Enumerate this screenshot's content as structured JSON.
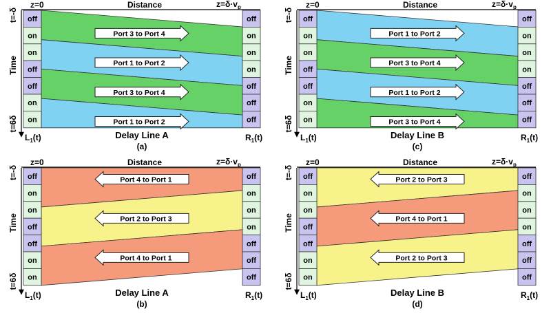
{
  "colors": {
    "green": "#66d166",
    "blue": "#7fd2f2",
    "orange": "#f59a7a",
    "yellow": "#f7f38a",
    "cell_green": "#dff5df",
    "cell_purple": "#c9c3f0",
    "border": "#333333"
  },
  "panels": [
    {
      "id": "a",
      "z0_label": "z=0",
      "distance_label": "Distance",
      "zend_label": "z=δ·v",
      "zend_sub": "p",
      "time_label": "Time",
      "t_start_label": "t=-δ",
      "t_end_label": "t=6δ",
      "left_label": "L",
      "left_sub": "1",
      "left_suffix": "(t)",
      "right_label": "R",
      "right_sub": "1",
      "right_suffix": "(t)",
      "delay_line_label": "Delay Line A",
      "caption": "(a)",
      "direction": "right",
      "left_cells": [
        "off",
        "on",
        "on",
        "off",
        "off",
        "on",
        "on"
      ],
      "right_cells": [
        "off",
        "on",
        "on",
        "on",
        "off",
        "off",
        "off"
      ],
      "bands": [
        {
          "color": "green",
          "label": "Port 3 to Port 4"
        },
        {
          "color": "blue",
          "label": "Port 1 to Port 2"
        },
        {
          "color": "green",
          "label": "Port 3 to Port 4"
        },
        {
          "color": "blue",
          "label": "Port 1 to Port 2"
        }
      ]
    },
    {
      "id": "c",
      "z0_label": "z=0",
      "distance_label": "Distance",
      "zend_label": "z=δ·v",
      "zend_sub": "p",
      "time_label": "Time",
      "t_start_label": "t=-δ",
      "t_end_label": "t=6δ",
      "left_label": "L",
      "left_sub": "1",
      "left_suffix": "(t)",
      "right_label": "R",
      "right_sub": "1",
      "right_suffix": "(t)",
      "delay_line_label": "Delay Line B",
      "caption": "(c)",
      "direction": "right",
      "left_cells": [
        "off",
        "on",
        "on",
        "off",
        "off",
        "on",
        "on"
      ],
      "right_cells": [
        "off",
        "on",
        "on",
        "on",
        "off",
        "off",
        "off"
      ],
      "bands": [
        {
          "color": "blue",
          "label": "Port 1 to Port 2"
        },
        {
          "color": "green",
          "label": "Port 3 to Port 4"
        },
        {
          "color": "blue",
          "label": "Port 1 to Port 2"
        },
        {
          "color": "green",
          "label": "Port 3 to Port 4"
        }
      ]
    },
    {
      "id": "b",
      "z0_label": "z=0",
      "distance_label": "Distance",
      "zend_label": "z=δ·v",
      "zend_sub": "p",
      "time_label": "Time",
      "t_start_label": "t=-δ",
      "t_end_label": "t=6δ",
      "left_label": "L",
      "left_sub": "1",
      "left_suffix": "(t)",
      "right_label": "R",
      "right_sub": "1",
      "right_suffix": "(t)",
      "delay_line_label": "Delay Line A",
      "caption": "(b)",
      "direction": "left",
      "left_cells": [
        "off",
        "on",
        "on",
        "off",
        "off",
        "on",
        "on"
      ],
      "right_cells": [
        "off",
        "on",
        "on",
        "on",
        "off",
        "off",
        "off"
      ],
      "bands": [
        {
          "color": "orange",
          "label": "Port 4 to Port 1"
        },
        {
          "color": "yellow",
          "label": "Port 2 to Port 3"
        },
        {
          "color": "orange",
          "label": "Port 4 to Port 1"
        }
      ]
    },
    {
      "id": "d",
      "z0_label": "z=0",
      "distance_label": "Distance",
      "zend_label": "z=δ·v",
      "zend_sub": "p",
      "time_label": "Time",
      "t_start_label": "t=-δ",
      "t_end_label": "t=6δ",
      "left_label": "L",
      "left_sub": "1",
      "left_suffix": "(t)",
      "right_label": "R",
      "right_sub": "1",
      "right_suffix": "(t)",
      "delay_line_label": "Delay Line B",
      "caption": "(d)",
      "direction": "left",
      "left_cells": [
        "off",
        "on",
        "on",
        "off",
        "off",
        "on",
        "on"
      ],
      "right_cells": [
        "off",
        "on",
        "on",
        "on",
        "off",
        "off",
        "off"
      ],
      "bands": [
        {
          "color": "yellow",
          "label": "Port 2 to Port 3"
        },
        {
          "color": "orange",
          "label": "Port 4 to Port 1"
        },
        {
          "color": "yellow",
          "label": "Port 2 to Port 3"
        }
      ]
    }
  ]
}
